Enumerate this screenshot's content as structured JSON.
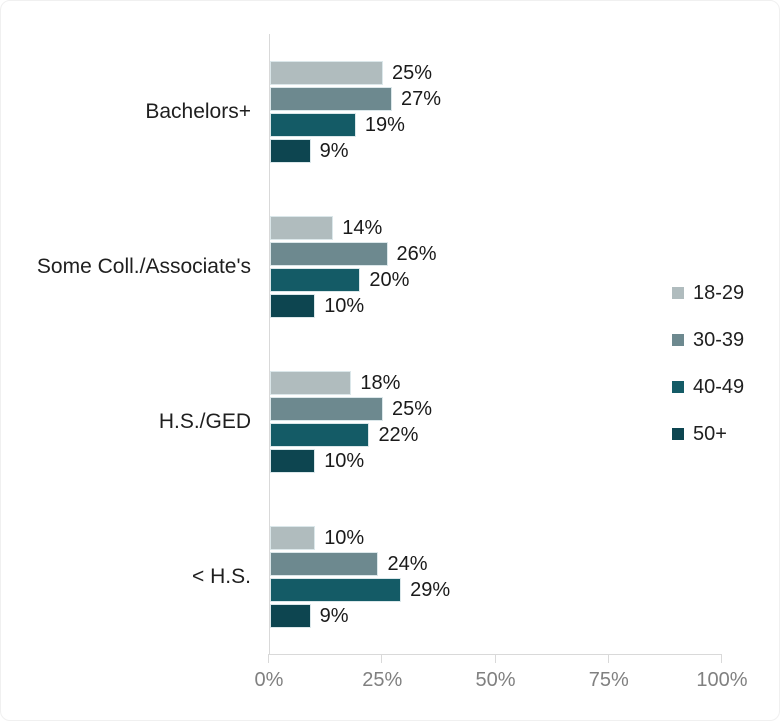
{
  "chart_data": {
    "type": "bar",
    "orientation": "horizontal",
    "title": "",
    "categories": [
      "Bachelors+",
      "Some Coll./Associate's",
      "H.S./GED",
      "< H.S."
    ],
    "series": [
      {
        "name": "18-29",
        "color": "#b0bcbe",
        "values": [
          25,
          14,
          18,
          10
        ]
      },
      {
        "name": "30-39",
        "color": "#6d898f",
        "values": [
          27,
          26,
          25,
          24
        ]
      },
      {
        "name": "40-49",
        "color": "#145b66",
        "values": [
          19,
          20,
          22,
          29
        ]
      },
      {
        "name": "50+",
        "color": "#0d4550",
        "values": [
          9,
          10,
          10,
          9
        ]
      }
    ],
    "data_labels": [
      [
        "25%",
        "27%",
        "19%",
        "9%"
      ],
      [
        "14%",
        "26%",
        "20%",
        "10%"
      ],
      [
        "18%",
        "25%",
        "22%",
        "10%"
      ],
      [
        "10%",
        "24%",
        "29%",
        "9%"
      ]
    ],
    "data_label_suffix": "%",
    "x_axis": {
      "min": 0,
      "max": 100,
      "tick_labels": [
        "0%",
        "25%",
        "50%",
        "75%",
        "100%"
      ],
      "tick_values": [
        0,
        25,
        50,
        75,
        100
      ]
    },
    "legend_position": "right",
    "grid": false
  },
  "style_colors": {
    "axis_line": "#d9d9d9",
    "tick_text": "#808080",
    "label_text": "#1f1f1f",
    "data_label_text": "#1a1a1a",
    "bar_border": "#dbe7ea"
  }
}
